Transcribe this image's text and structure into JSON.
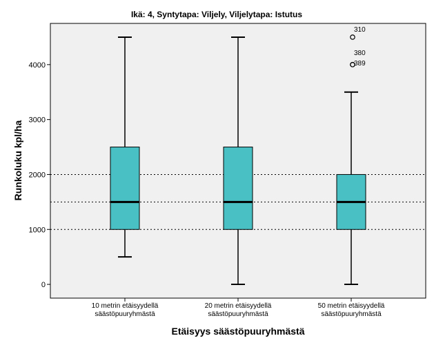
{
  "chart_data": {
    "type": "box",
    "title": "Ikä: 4, Syntytapa: Viljely, Viljelytapa: Istutus",
    "xlabel": "Etäisyys säästöpuuryhmästä",
    "ylabel": "Runkoluku kpl/ha",
    "ylim": [
      -250,
      4750
    ],
    "yticks": [
      0,
      1000,
      2000,
      3000,
      4000
    ],
    "reference_lines": [
      1000,
      1500,
      2000
    ],
    "box_color": "#48c0c4",
    "plot_background": "#f0f0f0",
    "categories": [
      {
        "line1": "10 metrin etäisyydellä",
        "line2": "säästöpuuryhmästä"
      },
      {
        "line1": "20 metrin etäisyydellä",
        "line2": "säästöpuuryhmästä"
      },
      {
        "line1": "50 metrin etäisyydellä",
        "line2": "säästöpuuryhmästä"
      }
    ],
    "boxes": [
      {
        "min": 500,
        "q1": 1000,
        "median": 1500,
        "q3": 2500,
        "max": 4500,
        "outliers": []
      },
      {
        "min": 0,
        "q1": 1000,
        "median": 1500,
        "q3": 2500,
        "max": 4500,
        "outliers": []
      },
      {
        "min": 0,
        "q1": 1000,
        "median": 1500,
        "q3": 2000,
        "max": 3500,
        "outliers": [
          {
            "value": 4500,
            "label": "310"
          },
          {
            "value": 4000,
            "label": "380"
          },
          {
            "value": 4000,
            "label": "389"
          }
        ]
      }
    ]
  }
}
